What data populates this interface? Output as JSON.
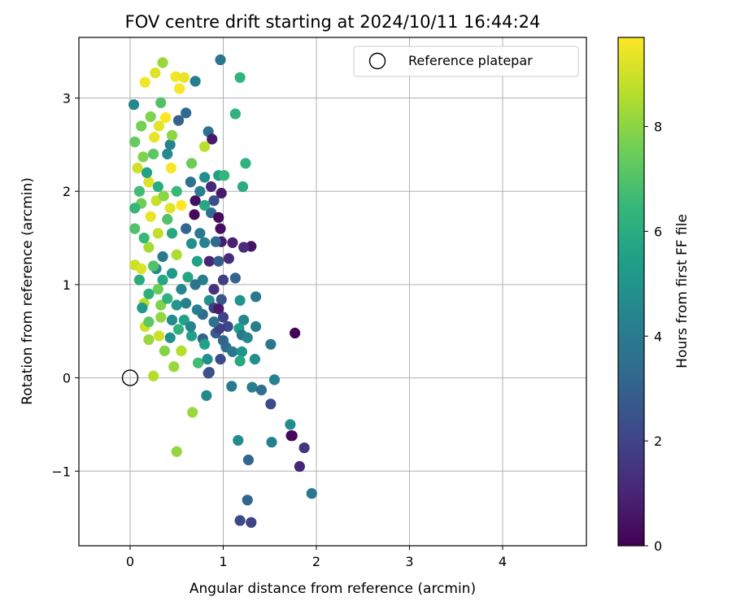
{
  "chart_data": {
    "type": "scatter",
    "title": "FOV centre drift starting at 2024/10/11 16:44:24",
    "xlabel": "Angular distance from reference (arcmin)",
    "ylabel": "Rotation from reference (arcmin)",
    "xlim": [
      -0.55,
      4.9
    ],
    "ylim": [
      -1.8,
      3.65
    ],
    "xticks": [
      0,
      1,
      2,
      3,
      4
    ],
    "yticks": [
      -1,
      0,
      1,
      2,
      3
    ],
    "x_tick_labels": [
      "0",
      "1",
      "2",
      "3",
      "4"
    ],
    "y_tick_labels": [
      "−1",
      "0",
      "1",
      "2",
      "3"
    ],
    "grid": true,
    "legend_position": "top-right",
    "legend": {
      "label": "Reference platepar",
      "marker": "open-circle",
      "x": 0,
      "y": 0
    },
    "colorbar": {
      "label": "Hours from first FF file",
      "colormap": "viridis",
      "range": [
        0,
        9.7
      ],
      "ticks": [
        0,
        2,
        4,
        6,
        8
      ],
      "tick_labels": [
        "0",
        "2",
        "4",
        "6",
        "8"
      ],
      "stops": [
        "#440154",
        "#482878",
        "#3e4989",
        "#31688e",
        "#26828e",
        "#1f9e89",
        "#35b779",
        "#6ece58",
        "#b5de2b",
        "#fde725"
      ]
    },
    "points": [
      [
        0.04,
        2.93,
        4.5
      ],
      [
        0.35,
        3.38,
        8.2
      ],
      [
        0.27,
        3.27,
        9.2
      ],
      [
        0.16,
        3.17,
        9.5
      ],
      [
        0.49,
        3.23,
        9.5
      ],
      [
        0.58,
        3.22,
        9.4
      ],
      [
        0.53,
        3.1,
        9.6
      ],
      [
        0.7,
        3.18,
        4.2
      ],
      [
        0.97,
        3.41,
        3.8
      ],
      [
        1.18,
        3.22,
        6.3
      ],
      [
        1.13,
        2.83,
        6.2
      ],
      [
        0.6,
        2.84,
        3.3
      ],
      [
        0.52,
        2.76,
        3.0
      ],
      [
        0.31,
        2.7,
        9.3
      ],
      [
        0.38,
        2.79,
        9.7
      ],
      [
        0.84,
        2.64,
        3.6
      ],
      [
        0.88,
        2.56,
        0.7
      ],
      [
        0.8,
        2.48,
        8.7
      ],
      [
        0.26,
        2.58,
        9.4
      ],
      [
        0.66,
        2.3,
        7.5
      ],
      [
        1.24,
        2.3,
        6.2
      ],
      [
        0.43,
        2.5,
        4.3
      ],
      [
        0.14,
        2.37,
        7.8
      ],
      [
        0.08,
        2.25,
        9.0
      ],
      [
        0.2,
        2.1,
        9.2
      ],
      [
        0.44,
        2.25,
        9.6
      ],
      [
        0.8,
        2.15,
        4.8
      ],
      [
        0.95,
        2.17,
        5.4
      ],
      [
        1.01,
        2.17,
        6.4
      ],
      [
        0.87,
        2.05,
        1.1
      ],
      [
        0.98,
        1.98,
        0.7
      ],
      [
        1.21,
        2.05,
        6.0
      ],
      [
        0.7,
        1.9,
        0.4
      ],
      [
        0.55,
        1.85,
        9.7
      ],
      [
        0.43,
        1.82,
        9.3
      ],
      [
        0.28,
        1.9,
        8.9
      ],
      [
        0.36,
        1.95,
        8.0
      ],
      [
        0.12,
        1.87,
        7.5
      ],
      [
        0.05,
        1.82,
        6.4
      ],
      [
        0.22,
        1.73,
        9.4
      ],
      [
        0.69,
        1.75,
        0.2
      ],
      [
        0.87,
        1.77,
        3.5
      ],
      [
        0.95,
        1.72,
        0.3
      ],
      [
        0.97,
        1.6,
        0.4
      ],
      [
        1.1,
        1.45,
        0.9
      ],
      [
        1.3,
        1.41,
        0.5
      ],
      [
        1.22,
        1.4,
        1.2
      ],
      [
        0.98,
        1.46,
        0.8
      ],
      [
        0.92,
        1.46,
        3.3
      ],
      [
        0.8,
        1.45,
        4.3
      ],
      [
        0.66,
        1.44,
        4.8
      ],
      [
        0.85,
        1.25,
        1.0
      ],
      [
        1.06,
        1.28,
        1.2
      ],
      [
        0.72,
        1.25,
        5.5
      ],
      [
        0.5,
        1.32,
        8.5
      ],
      [
        0.35,
        1.3,
        4.0
      ],
      [
        0.2,
        1.4,
        8.4
      ],
      [
        0.05,
        1.21,
        8.9
      ],
      [
        0.12,
        1.17,
        9.2
      ],
      [
        0.28,
        1.17,
        4.6
      ],
      [
        0.45,
        1.12,
        5.2
      ],
      [
        0.62,
        1.08,
        5.7
      ],
      [
        0.78,
        1.05,
        4.1
      ],
      [
        1.0,
        1.05,
        1.8
      ],
      [
        1.13,
        1.07,
        3.1
      ],
      [
        1.35,
        0.87,
        3.9
      ],
      [
        1.18,
        0.83,
        5.0
      ],
      [
        0.98,
        0.84,
        2.6
      ],
      [
        0.85,
        0.83,
        4.8
      ],
      [
        0.9,
        0.75,
        1.9
      ],
      [
        0.95,
        0.74,
        0.7
      ],
      [
        0.78,
        0.68,
        3.4
      ],
      [
        0.72,
        0.73,
        4.1
      ],
      [
        0.5,
        0.78,
        5.1
      ],
      [
        0.33,
        0.78,
        7.8
      ],
      [
        0.15,
        0.8,
        8.6
      ],
      [
        0.13,
        0.75,
        5.2
      ],
      [
        0.33,
        0.65,
        8.1
      ],
      [
        0.45,
        0.62,
        4.7
      ],
      [
        0.58,
        0.62,
        5.5
      ],
      [
        1.22,
        0.62,
        4.5
      ],
      [
        1.05,
        0.55,
        2.2
      ],
      [
        0.92,
        0.48,
        2.8
      ],
      [
        0.96,
        0.53,
        1.8
      ],
      [
        1.0,
        0.65,
        2.0
      ],
      [
        1.17,
        0.53,
        5.4
      ],
      [
        1.2,
        0.46,
        4.0
      ],
      [
        1.26,
        0.43,
        4.5
      ],
      [
        1.35,
        0.55,
        4.2
      ],
      [
        1.77,
        0.48,
        0.1
      ],
      [
        1.51,
        0.36,
        3.9
      ],
      [
        0.16,
        0.55,
        9.0
      ],
      [
        0.2,
        0.41,
        8.2
      ],
      [
        0.31,
        0.45,
        9.0
      ],
      [
        0.43,
        0.43,
        4.8
      ],
      [
        0.52,
        0.52,
        6.2
      ],
      [
        0.37,
        0.29,
        7.9
      ],
      [
        0.55,
        0.29,
        8.6
      ],
      [
        0.66,
        0.45,
        5.5
      ],
      [
        0.78,
        0.42,
        3.1
      ],
      [
        0.8,
        0.36,
        5.5
      ],
      [
        1.03,
        0.33,
        3.5
      ],
      [
        1.1,
        0.28,
        3.9
      ],
      [
        1.2,
        0.28,
        5.0
      ],
      [
        0.73,
        0.16,
        6.7
      ],
      [
        0.83,
        0.2,
        4.8
      ],
      [
        0.97,
        0.2,
        2.2
      ],
      [
        1.18,
        0.18,
        5.8
      ],
      [
        1.34,
        0.2,
        4.8
      ],
      [
        0.47,
        0.12,
        8.2
      ],
      [
        0.85,
        0.06,
        1.8
      ],
      [
        0.84,
        0.05,
        2.5
      ],
      [
        0.25,
        0.02,
        8.6
      ],
      [
        1.09,
        -0.09,
        4.0
      ],
      [
        1.31,
        -0.1,
        4.2
      ],
      [
        1.41,
        -0.13,
        3.5
      ],
      [
        1.55,
        -0.02,
        4.3
      ],
      [
        0.82,
        -0.19,
        4.6
      ],
      [
        0.67,
        -0.37,
        8.2
      ],
      [
        1.51,
        -0.28,
        2.2
      ],
      [
        1.72,
        -0.5,
        4.7
      ],
      [
        1.16,
        -0.67,
        4.7
      ],
      [
        1.52,
        -0.69,
        4.2
      ],
      [
        1.73,
        -0.62,
        0.3
      ],
      [
        1.74,
        -0.62,
        0.2
      ],
      [
        0.5,
        -0.79,
        8.1
      ],
      [
        1.87,
        -0.75,
        1.5
      ],
      [
        1.82,
        -0.95,
        1.0
      ],
      [
        1.27,
        -0.88,
        3.2
      ],
      [
        1.95,
        -1.24,
        3.9
      ],
      [
        1.26,
        -1.31,
        3.2
      ],
      [
        1.18,
        -1.53,
        2.2
      ],
      [
        1.3,
        -1.55,
        2.0
      ],
      [
        0.1,
        2.0,
        6.7
      ],
      [
        0.18,
        2.2,
        5.5
      ],
      [
        0.25,
        2.4,
        7.2
      ],
      [
        0.3,
        2.05,
        6.0
      ],
      [
        0.4,
        1.7,
        7.0
      ],
      [
        0.15,
        1.5,
        6.5
      ],
      [
        0.25,
        1.2,
        7.0
      ],
      [
        0.1,
        1.05,
        6.0
      ],
      [
        0.3,
        0.95,
        7.5
      ],
      [
        0.55,
        0.95,
        4.5
      ],
      [
        0.6,
        1.6,
        3.2
      ],
      [
        0.45,
        1.55,
        5.8
      ],
      [
        0.75,
        1.55,
        4.0
      ],
      [
        0.3,
        1.55,
        8.8
      ],
      [
        0.5,
        2.0,
        6.5
      ],
      [
        0.65,
        2.1,
        3.6
      ],
      [
        0.22,
        2.8,
        7.8
      ],
      [
        0.12,
        2.7,
        7.6
      ],
      [
        0.33,
        2.95,
        7.0
      ],
      [
        0.45,
        2.6,
        8.0
      ],
      [
        0.05,
        2.53,
        7.4
      ],
      [
        0.05,
        1.6,
        7.0
      ],
      [
        0.2,
        0.6,
        7.2
      ],
      [
        0.4,
        0.85,
        6.2
      ],
      [
        0.6,
        0.8,
        4.2
      ],
      [
        0.7,
        1.0,
        3.7
      ],
      [
        0.9,
        0.95,
        1.4
      ],
      [
        0.95,
        1.25,
        2.8
      ],
      [
        0.9,
        1.9,
        2.4
      ],
      [
        0.8,
        1.85,
        5.8
      ],
      [
        0.75,
        2.0,
        4.2
      ],
      [
        0.4,
        2.4,
        4.6
      ],
      [
        0.35,
        1.05,
        5.8
      ],
      [
        0.2,
        0.9,
        6.1
      ],
      [
        1.0,
        0.4,
        3.2
      ],
      [
        0.9,
        0.6,
        3.6
      ],
      [
        0.65,
        0.55,
        4.4
      ]
    ]
  }
}
